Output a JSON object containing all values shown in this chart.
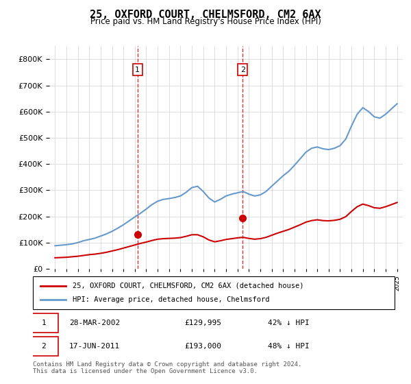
{
  "title": "25, OXFORD COURT, CHELMSFORD, CM2 6AX",
  "subtitle": "Price paid vs. HM Land Registry's House Price Index (HPI)",
  "legend_line1": "25, OXFORD COURT, CHELMSFORD, CM2 6AX (detached house)",
  "legend_line2": "HPI: Average price, detached house, Chelmsford",
  "footer": "Contains HM Land Registry data © Crown copyright and database right 2024.\nThis data is licensed under the Open Government Licence v3.0.",
  "transaction1_label": "1",
  "transaction1_date": "28-MAR-2002",
  "transaction1_price": "£129,995",
  "transaction1_hpi": "42% ↓ HPI",
  "transaction2_label": "2",
  "transaction2_date": "17-JUN-2011",
  "transaction2_price": "£193,000",
  "transaction2_hpi": "48% ↓ HPI",
  "red_color": "#cc0000",
  "blue_color": "#6699cc",
  "dashed_red": "#cc0000",
  "marker1_x": 2002.23,
  "marker1_y": 129995,
  "marker2_x": 2011.46,
  "marker2_y": 193000,
  "ylim": [
    0,
    850000
  ],
  "xlim_left": 1994.5,
  "xlim_right": 2025.5,
  "hpi_years": [
    1995,
    1995.5,
    1996,
    1996.5,
    1997,
    1997.5,
    1998,
    1998.5,
    1999,
    1999.5,
    2000,
    2000.5,
    2001,
    2001.5,
    2002,
    2002.5,
    2003,
    2003.5,
    2004,
    2004.5,
    2005,
    2005.5,
    2006,
    2006.5,
    2007,
    2007.5,
    2008,
    2008.5,
    2009,
    2009.5,
    2010,
    2010.5,
    2011,
    2011.5,
    2012,
    2012.5,
    2013,
    2013.5,
    2014,
    2014.5,
    2015,
    2015.5,
    2016,
    2016.5,
    2017,
    2017.5,
    2018,
    2018.5,
    2019,
    2019.5,
    2020,
    2020.5,
    2021,
    2021.5,
    2022,
    2022.5,
    2023,
    2023.5,
    2024,
    2024.5,
    2025
  ],
  "hpi_values": [
    88000,
    90000,
    92000,
    95000,
    100000,
    107000,
    112000,
    117000,
    125000,
    133000,
    143000,
    155000,
    168000,
    183000,
    198000,
    212000,
    228000,
    245000,
    258000,
    265000,
    268000,
    272000,
    278000,
    292000,
    310000,
    315000,
    295000,
    270000,
    255000,
    265000,
    278000,
    285000,
    290000,
    295000,
    285000,
    278000,
    282000,
    295000,
    315000,
    335000,
    355000,
    372000,
    395000,
    420000,
    445000,
    460000,
    465000,
    458000,
    455000,
    460000,
    470000,
    495000,
    545000,
    590000,
    615000,
    600000,
    580000,
    575000,
    590000,
    610000,
    630000
  ],
  "red_years": [
    1995,
    1995.5,
    1996,
    1996.5,
    1997,
    1997.5,
    1998,
    1998.5,
    1999,
    1999.5,
    2000,
    2000.5,
    2001,
    2001.5,
    2002,
    2002.5,
    2003,
    2003.5,
    2004,
    2004.5,
    2005,
    2005.5,
    2006,
    2006.5,
    2007,
    2007.5,
    2008,
    2008.5,
    2009,
    2009.5,
    2010,
    2010.5,
    2011,
    2011.5,
    2012,
    2012.5,
    2013,
    2013.5,
    2014,
    2014.5,
    2015,
    2015.5,
    2016,
    2016.5,
    2017,
    2017.5,
    2018,
    2018.5,
    2019,
    2019.5,
    2020,
    2020.5,
    2021,
    2021.5,
    2022,
    2022.5,
    2023,
    2023.5,
    2024,
    2024.5,
    2025
  ],
  "red_values": [
    42000,
    43000,
    44000,
    46000,
    48000,
    51000,
    54000,
    56000,
    59000,
    63000,
    68000,
    73000,
    79000,
    85000,
    91000,
    97000,
    102000,
    108000,
    113000,
    115000,
    116000,
    117000,
    119000,
    124000,
    130000,
    130000,
    122000,
    110000,
    103000,
    107000,
    112000,
    115000,
    118000,
    120000,
    116000,
    113000,
    115000,
    120000,
    128000,
    136000,
    143000,
    150000,
    159000,
    168000,
    178000,
    184000,
    187000,
    184000,
    183000,
    185000,
    189000,
    199000,
    219000,
    237000,
    247000,
    241000,
    233000,
    231000,
    237000,
    245000,
    253000
  ]
}
